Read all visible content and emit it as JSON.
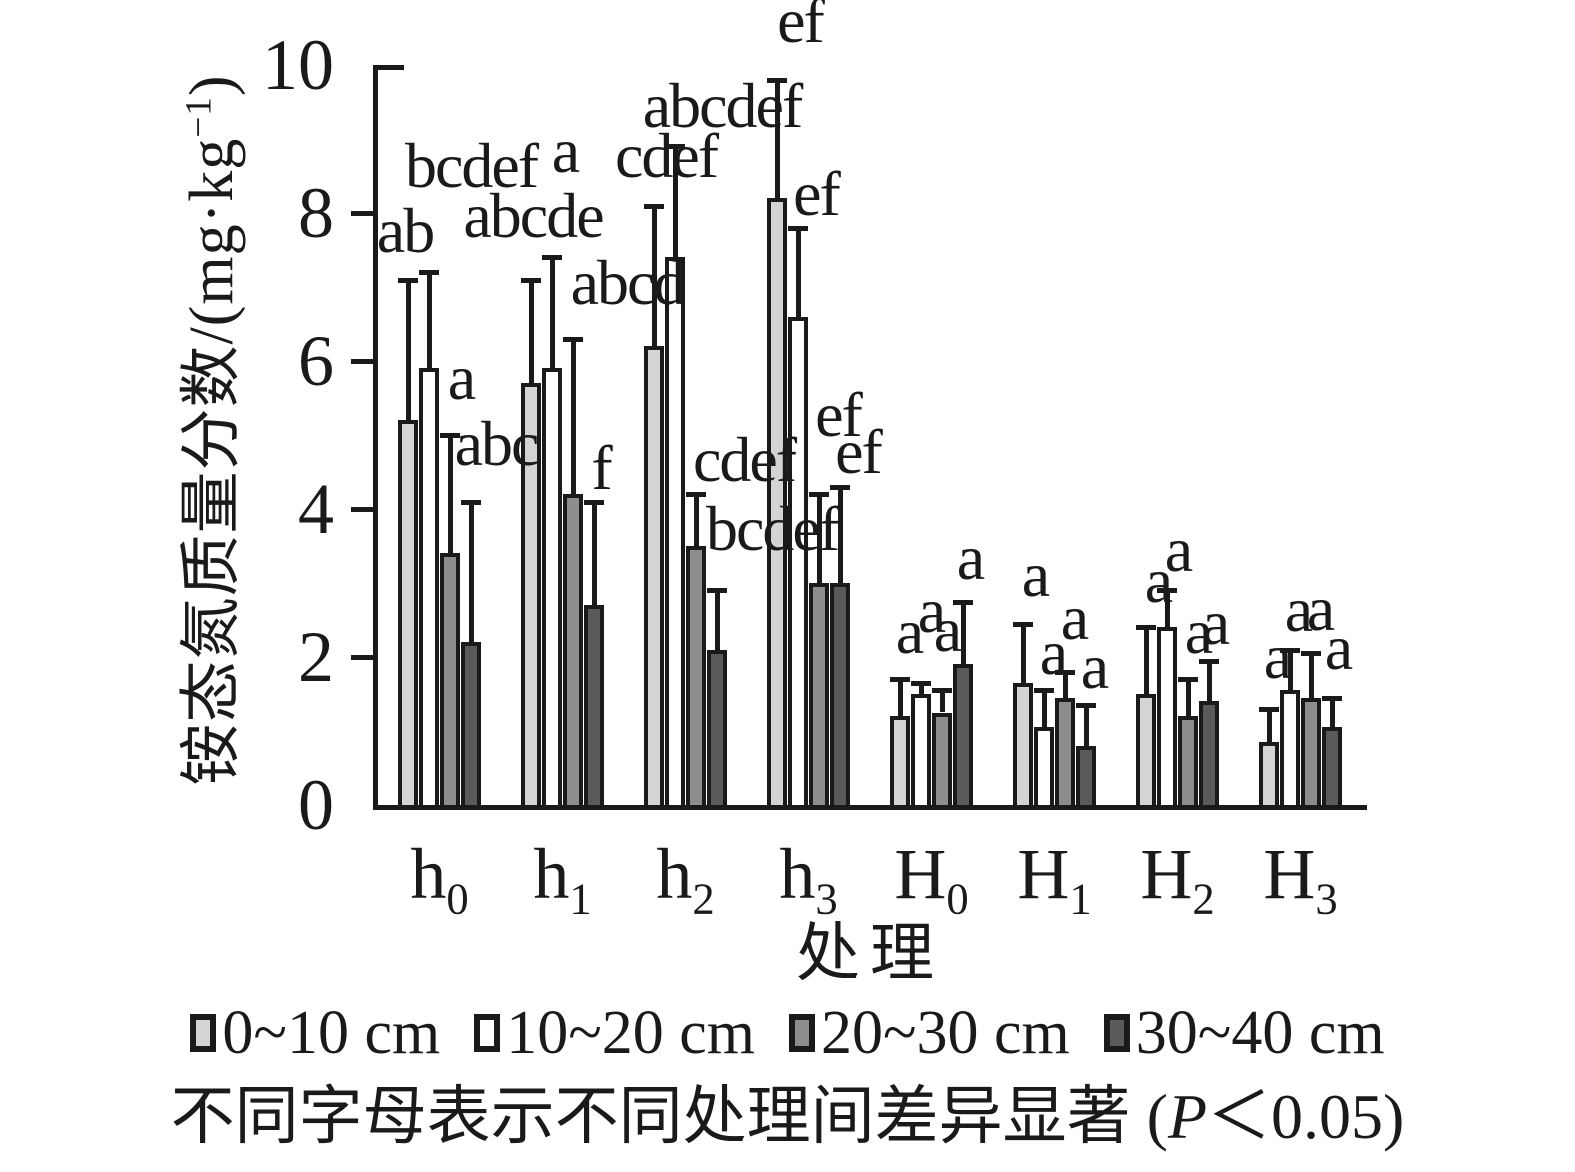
{
  "figure": {
    "y_axis": {
      "title_main": "铵态氮质量分数/(mg·kg",
      "title_sup": "−1",
      "title_end": ")"
    },
    "x_axis": {
      "title": "处理"
    },
    "caption": {
      "prefix": "不同字母表示不同处理间差异显著 (",
      "italic": "P",
      "suffix": "＜0.05)"
    }
  },
  "chart_data": {
    "type": "bar",
    "title": "",
    "xlabel": "处理",
    "ylabel": "铵态氮质量分数/(mg·kg−1)",
    "ylim": [
      0,
      10
    ],
    "yticks": [
      0,
      2,
      4,
      6,
      8,
      10
    ],
    "grid": false,
    "legend_position": "bottom",
    "error_bars": "upper",
    "categories": [
      "h0",
      "h1",
      "h2",
      "h3",
      "H0",
      "H1",
      "H2",
      "H3"
    ],
    "series": [
      {
        "name": "0~10 cm",
        "color": "#d4d4d4",
        "values": [
          5.2,
          5.7,
          6.2,
          8.2,
          1.2,
          1.65,
          1.5,
          0.85
        ],
        "errors": [
          1.9,
          1.4,
          1.9,
          1.6,
          0.5,
          0.8,
          0.9,
          0.45
        ],
        "letters": [
          "ab",
          "abcde",
          "cdef",
          "ef",
          "a",
          "a",
          "a",
          "a"
        ],
        "letter_dx": [
          -3,
          2,
          12,
          23,
          9,
          12,
          12,
          8
        ],
        "letter_gap": [
          17,
          32,
          18,
          27,
          15,
          17,
          14,
          20
        ]
      },
      {
        "name": "10~20 cm",
        "color": "#ffffff",
        "values": [
          5.9,
          5.9,
          7.4,
          6.6,
          1.5,
          1.05,
          2.4,
          1.55
        ],
        "errors": [
          1.3,
          1.5,
          1.5,
          1.2,
          0.15,
          0.5,
          0.5,
          0.55
        ],
        "letters": [
          "bcdef",
          "a",
          "abcdef",
          "ef",
          "a",
          "a",
          "a",
          "a"
        ],
        "letter_dx": [
          42,
          13,
          47,
          18,
          10,
          9,
          11,
          8
        ],
        "letter_gap": [
          74,
          74,
          8,
          2,
          40,
          5,
          8,
          8
        ]
      },
      {
        "name": "20~30 cm",
        "color": "#8d8d8d",
        "values": [
          3.4,
          4.2,
          3.5,
          3.0,
          1.25,
          1.45,
          1.2,
          1.45
        ],
        "errors": [
          1.6,
          2.1,
          0.7,
          1.2,
          0.3,
          0.35,
          0.5,
          0.6
        ],
        "letters": [
          "a",
          "abcd",
          "cdef",
          "ef",
          "a",
          "a",
          "a",
          "a"
        ],
        "letter_dx": [
          11,
          54,
          48,
          19,
          5,
          9,
          10,
          9
        ],
        "letter_gap": [
          25,
          24,
          2,
          47,
          28,
          22,
          15,
          12
        ]
      },
      {
        "name": "30~40 cm",
        "color": "#5a5a5a",
        "values": [
          2.2,
          2.7,
          2.1,
          3.0,
          1.9,
          0.8,
          1.4,
          1.05
        ],
        "errors": [
          1.9,
          1.4,
          0.8,
          1.3,
          0.85,
          0.55,
          0.55,
          0.4
        ],
        "letters": [
          "abc",
          "f",
          "bcdef",
          "ef",
          "a",
          "a",
          "a",
          "a"
        ],
        "letter_dx": [
          25,
          7,
          55,
          18,
          7,
          8,
          6,
          6
        ],
        "letter_gap": [
          26,
          2,
          29,
          3,
          12,
          6,
          6,
          18
        ]
      }
    ]
  }
}
